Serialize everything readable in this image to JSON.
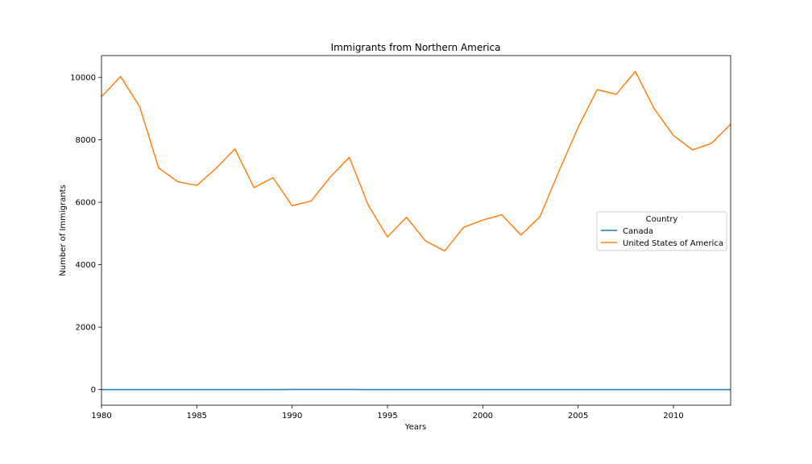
{
  "chart_data": {
    "type": "line",
    "title": "Immigrants from Northern America",
    "xlabel": "Years",
    "ylabel": "Number of Immigrants",
    "xlim": [
      1980,
      2013
    ],
    "ylim": [
      -500,
      10700
    ],
    "xticks": [
      1980,
      1985,
      1990,
      1995,
      2000,
      2005,
      2010
    ],
    "yticks": [
      0,
      2000,
      4000,
      6000,
      8000,
      10000
    ],
    "grid": false,
    "legend": {
      "title": "Country",
      "placement": "center-right"
    },
    "x": [
      1980,
      1981,
      1982,
      1983,
      1984,
      1985,
      1986,
      1987,
      1988,
      1989,
      1990,
      1991,
      1992,
      1993,
      1994,
      1995,
      1996,
      1997,
      1998,
      1999,
      2000,
      2001,
      2002,
      2003,
      2004,
      2005,
      2006,
      2007,
      2008,
      2009,
      2010,
      2011,
      2012,
      2013
    ],
    "series": [
      {
        "name": "Canada",
        "color": "#1f77b4",
        "values": [
          0,
          0,
          0,
          0,
          0,
          0,
          0,
          0,
          0,
          1,
          2,
          2,
          3,
          2,
          1,
          1,
          0,
          0,
          0,
          0,
          0,
          0,
          0,
          0,
          0,
          0,
          0,
          0,
          0,
          0,
          0,
          1,
          1,
          1
        ]
      },
      {
        "name": "United States of America",
        "color": "#ff7f0e",
        "values": [
          9380,
          10030,
          9070,
          7100,
          6660,
          6540,
          7080,
          7710,
          6470,
          6790,
          5890,
          6040,
          6810,
          7440,
          5900,
          4890,
          5520,
          4760,
          4440,
          5200,
          5430,
          5600,
          4950,
          5540,
          7000,
          8400,
          9610,
          9460,
          10190,
          8990,
          8140,
          7680,
          7890,
          8500
        ]
      }
    ]
  }
}
